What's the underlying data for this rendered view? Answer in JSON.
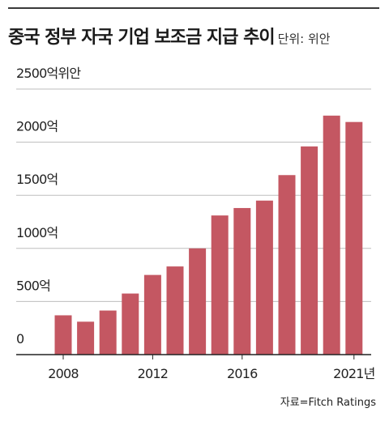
{
  "header": {
    "title": "중국 정부 자국 기업 보조금 지급 추이",
    "unit": "단위: 위안"
  },
  "source": "자료=Fitch Ratings",
  "colors": {
    "bar": "#c45762",
    "grid": "#bdbdbd",
    "axis": "#222222"
  },
  "chart_data": {
    "type": "bar",
    "title": "중국 정부 자국 기업 보조금 지급 추이",
    "x": [
      2008,
      2009,
      2010,
      2011,
      2012,
      2013,
      2014,
      2015,
      2016,
      2017,
      2018,
      2019,
      2020,
      2021
    ],
    "values": [
      370,
      310,
      415,
      575,
      750,
      830,
      1000,
      1310,
      1380,
      1450,
      1690,
      1960,
      2250,
      2190
    ],
    "unit": "억위안",
    "ylim": [
      0,
      2500
    ],
    "yticks": [
      0,
      500,
      1000,
      1500,
      2000,
      2500
    ],
    "ytick_labels": [
      "0",
      "500억",
      "1000억",
      "1500억",
      "2000억",
      "2500억위안"
    ],
    "xtick_labels": [
      "2008",
      "2012",
      "2016",
      "2021년"
    ],
    "xtick_years": [
      2008,
      2012,
      2016,
      2021
    ],
    "grid": true,
    "legend": "none"
  }
}
